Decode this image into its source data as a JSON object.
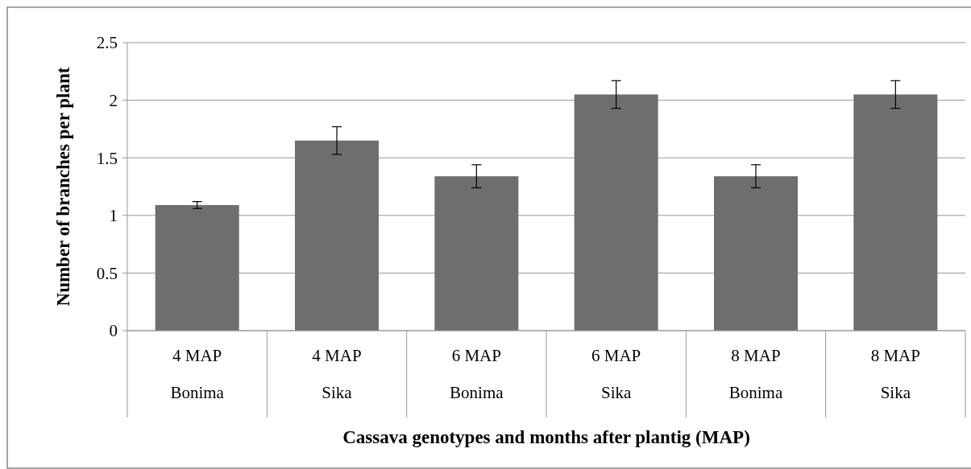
{
  "chart_data": {
    "type": "bar",
    "xlabel": "Cassava genotypes and months after plantig (MAP)",
    "ylabel": "Number of branches per plant",
    "categories": [
      "4 MAP\nBonima",
      "4 MAP\nSika",
      "6 MAP\nBonima",
      "6 MAP\nSika",
      "8 MAP\nBonima",
      "8 MAP\nSika"
    ],
    "values": [
      1.09,
      1.65,
      1.34,
      2.05,
      1.34,
      2.05
    ],
    "errors": [
      0.03,
      0.12,
      0.1,
      0.12,
      0.1,
      0.12
    ],
    "color": "#6e6e6e",
    "ylim": [
      0,
      2.5
    ],
    "yticks": [
      0,
      0.5,
      1,
      1.5,
      2,
      2.5
    ],
    "grid": "y"
  }
}
